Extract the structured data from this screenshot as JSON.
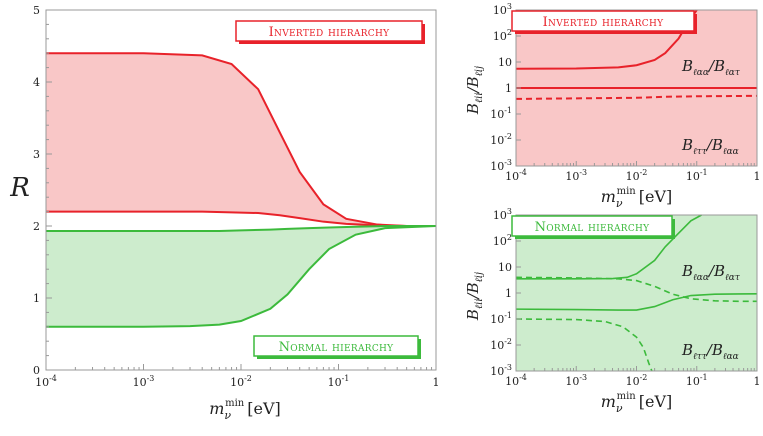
{
  "colors": {
    "inverted": "#e8222a",
    "inverted_fill": "#f9c7c7",
    "normal": "#3cba3c",
    "normal_fill": "#cdeccd",
    "frame": "#999999"
  },
  "chart_data": [
    {
      "type": "area",
      "panel": "left",
      "xscale": "log",
      "xlim": [
        0.0001,
        1
      ],
      "ylim": [
        0,
        5
      ],
      "xlabel_main": "m",
      "xlabel_sub": "ν",
      "xlabel_sup": "min",
      "xlabel_unit": "[eV]",
      "ylabel": "R",
      "x_ticks": [
        "10",
        "10",
        "10",
        "10",
        "1"
      ],
      "x_tick_exps": [
        "-4",
        "-3",
        "-2",
        "-1",
        ""
      ],
      "y_ticks": [
        "0",
        "1",
        "2",
        "3",
        "4",
        "5"
      ],
      "series": [
        {
          "group": "inverted",
          "x": [
            0.0001,
            0.001,
            0.004,
            0.008,
            0.015,
            0.025,
            0.04,
            0.07,
            0.12,
            0.25,
            0.5,
            1
          ],
          "y_upper": [
            4.4,
            4.4,
            4.37,
            4.25,
            3.9,
            3.3,
            2.75,
            2.3,
            2.1,
            2.02,
            2.0,
            2.0
          ],
          "y_lower": [
            2.2,
            2.2,
            2.2,
            2.19,
            2.18,
            2.15,
            2.11,
            2.06,
            2.03,
            2.01,
            2.0,
            2.0
          ]
        },
        {
          "group": "normal",
          "x": [
            0.0001,
            0.001,
            0.003,
            0.006,
            0.01,
            0.02,
            0.03,
            0.05,
            0.08,
            0.15,
            0.3,
            1
          ],
          "y_upper": [
            1.93,
            1.93,
            1.93,
            1.93,
            1.94,
            1.95,
            1.96,
            1.97,
            1.98,
            1.99,
            2.0,
            2.0
          ],
          "y_lower": [
            0.6,
            0.6,
            0.61,
            0.63,
            0.68,
            0.85,
            1.05,
            1.4,
            1.68,
            1.88,
            1.97,
            2.0
          ]
        }
      ],
      "labels": {
        "inverted": "Inverted hierarchy",
        "normal": "Normal hierarchy"
      }
    },
    {
      "type": "line",
      "panel": "top-right",
      "xscale": "log",
      "yscale": "log",
      "xlim": [
        0.0001,
        1
      ],
      "ylim": [
        0.001,
        1000
      ],
      "label": "Inverted hierarchy",
      "ratio_upper": {
        "num": "B",
        "num_sub": "ℓαα",
        "den": "B",
        "den_sub": "ℓατ"
      },
      "ratio_lower": {
        "num": "B",
        "num_sub": "ℓττ",
        "den": "B",
        "den_sub": "ℓαα"
      },
      "ylabel": {
        "num": "B",
        "num_sub": "ℓii",
        "den": "B",
        "den_sub": "ℓij"
      },
      "series": [
        {
          "style": "solid",
          "x": [
            0.0001,
            0.001,
            0.005,
            0.01,
            0.02,
            0.03,
            0.05,
            0.07,
            0.1
          ],
          "y": [
            5.5,
            5.6,
            6.2,
            7.5,
            12,
            22,
            80,
            300,
            1000
          ]
        },
        {
          "style": "solid",
          "x": [
            0.0001,
            1
          ],
          "y": [
            1.0,
            1.0
          ]
        },
        {
          "style": "dashed",
          "x": [
            0.0001,
            0.001,
            0.01,
            0.03,
            0.1,
            1
          ],
          "y": [
            0.38,
            0.4,
            0.42,
            0.46,
            0.48,
            0.5
          ]
        }
      ],
      "y_tick_exps": [
        "-3",
        "-2",
        "-1",
        "",
        "",
        "2",
        "3"
      ]
    },
    {
      "type": "line",
      "panel": "bottom-right",
      "xscale": "log",
      "yscale": "log",
      "xlim": [
        0.0001,
        1
      ],
      "ylim": [
        0.001,
        1000
      ],
      "label": "Normal hierarchy",
      "ratio_upper": {
        "num": "B",
        "num_sub": "ℓαα",
        "den": "B",
        "den_sub": "ℓατ"
      },
      "ratio_lower": {
        "num": "B",
        "num_sub": "ℓττ",
        "den": "B",
        "den_sub": "ℓαα"
      },
      "ylabel": {
        "num": "B",
        "num_sub": "ℓii",
        "den": "B",
        "den_sub": "ℓij"
      },
      "series": [
        {
          "style": "solid",
          "x": [
            0.0001,
            0.001,
            0.004,
            0.007,
            0.01,
            0.02,
            0.03,
            0.05,
            0.08,
            0.12
          ],
          "y": [
            3.5,
            3.5,
            3.6,
            4.0,
            5.5,
            18,
            60,
            200,
            600,
            1000
          ]
        },
        {
          "style": "solid",
          "x": [
            0.0001,
            0.001,
            0.005,
            0.01,
            0.02,
            0.04,
            0.08,
            0.2,
            0.5,
            1
          ],
          "y": [
            0.24,
            0.23,
            0.22,
            0.22,
            0.3,
            0.55,
            0.8,
            0.9,
            0.92,
            0.93
          ]
        },
        {
          "style": "dashed",
          "x": [
            0.0001,
            0.001,
            0.005,
            0.01,
            0.02,
            0.04,
            0.08,
            0.2,
            0.5,
            1
          ],
          "y": [
            4.0,
            3.8,
            3.5,
            3.0,
            1.8,
            0.9,
            0.6,
            0.5,
            0.48,
            0.48
          ]
        },
        {
          "style": "dashed",
          "x": [
            0.0001,
            0.001,
            0.003,
            0.006,
            0.01,
            0.013,
            0.016,
            0.018
          ],
          "y": [
            0.1,
            0.095,
            0.08,
            0.05,
            0.02,
            0.008,
            0.002,
            0.001
          ]
        }
      ],
      "y_tick_exps": [
        "-3",
        "-2",
        "-1",
        "",
        "",
        "2",
        "3"
      ]
    }
  ]
}
